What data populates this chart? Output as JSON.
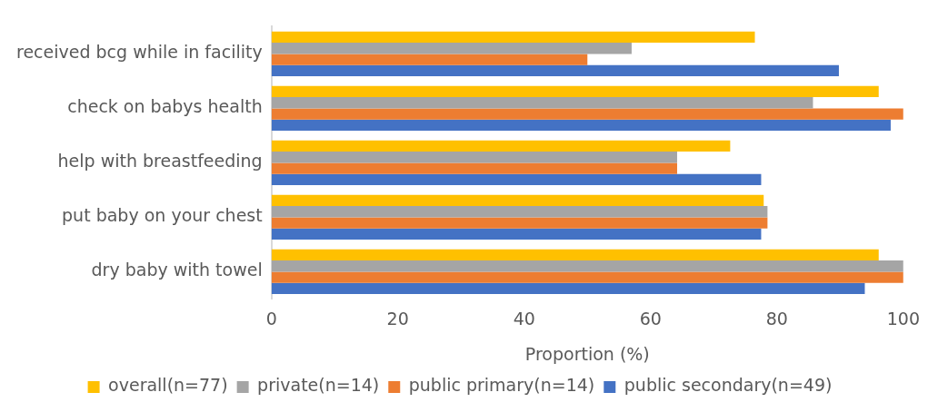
{
  "chart_data": {
    "type": "bar",
    "orientation": "horizontal",
    "categories": [
      "received bcg while in facility",
      "check on babys health",
      "help with breastfeeding",
      "put baby on your chest",
      "dry baby with towel"
    ],
    "series": [
      {
        "name": "overall(n=77)",
        "color": "#ffc000",
        "values": [
          76.5,
          96.1,
          72.6,
          77.9,
          96.1
        ]
      },
      {
        "name": "private(n=14)",
        "color": "#a5a5a5",
        "values": [
          57.0,
          85.7,
          64.2,
          78.5,
          100
        ]
      },
      {
        "name": "public primary(n=14)",
        "color": "#ed7d31",
        "values": [
          50.0,
          100,
          64.2,
          78.5,
          100
        ]
      },
      {
        "name": "public secondary(n=49)",
        "color": "#4472c4",
        "values": [
          89.8,
          98.0,
          77.5,
          77.5,
          93.9
        ]
      }
    ],
    "xlabel": "Proportion (%)",
    "xlim": [
      0,
      100
    ],
    "xticks": [
      0,
      20,
      40,
      60,
      80,
      100
    ],
    "grid": false,
    "legend": "bottom"
  }
}
